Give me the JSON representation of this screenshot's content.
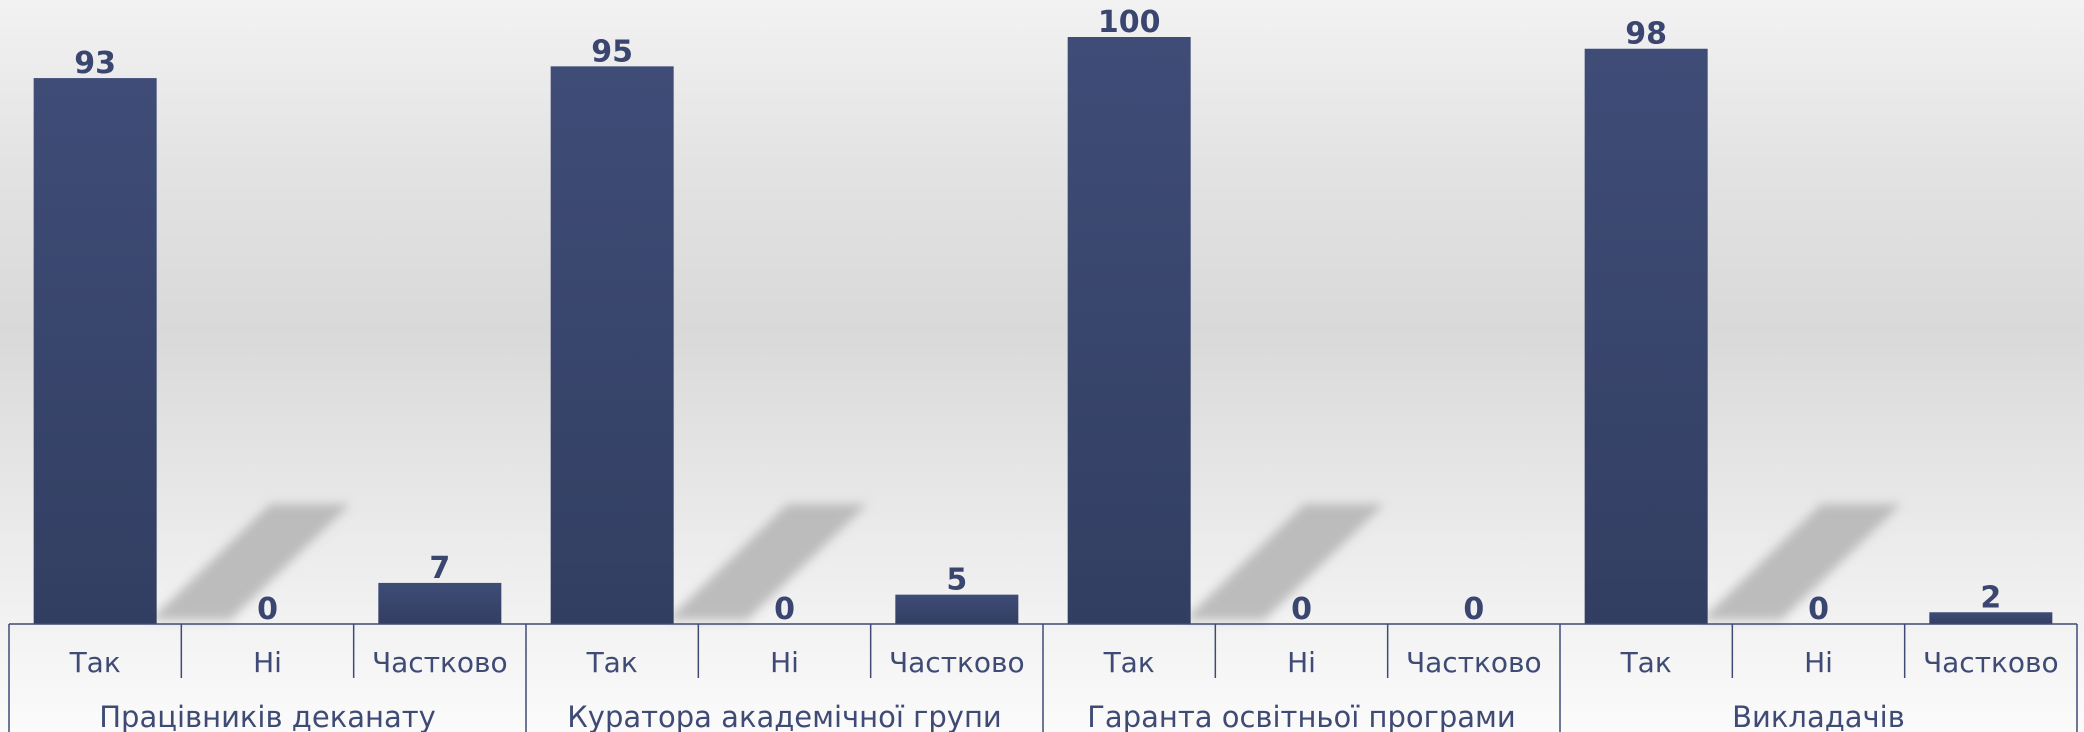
{
  "chart_data": {
    "type": "bar",
    "groups": [
      {
        "name": "Працівників деканату",
        "categories": [
          "Так",
          "Ні",
          "Частково"
        ],
        "values": [
          93,
          0,
          7
        ]
      },
      {
        "name": "Куратора академічної групи",
        "categories": [
          "Так",
          "Ні",
          "Частково"
        ],
        "values": [
          95,
          0,
          5
        ]
      },
      {
        "name": "Гаранта освітньої програми",
        "categories": [
          "Так",
          "Ні",
          "Частково"
        ],
        "values": [
          100,
          0,
          0
        ]
      },
      {
        "name": "Викладачів",
        "categories": [
          "Так",
          "Ні",
          "Частково"
        ],
        "values": [
          98,
          0,
          2
        ]
      }
    ],
    "ylim": [
      0,
      100
    ],
    "colors": {
      "bar": "#3d4a73",
      "bar_dark": "#333f63",
      "text": "#3f4b75",
      "shadow": "#b4b4b4"
    }
  }
}
